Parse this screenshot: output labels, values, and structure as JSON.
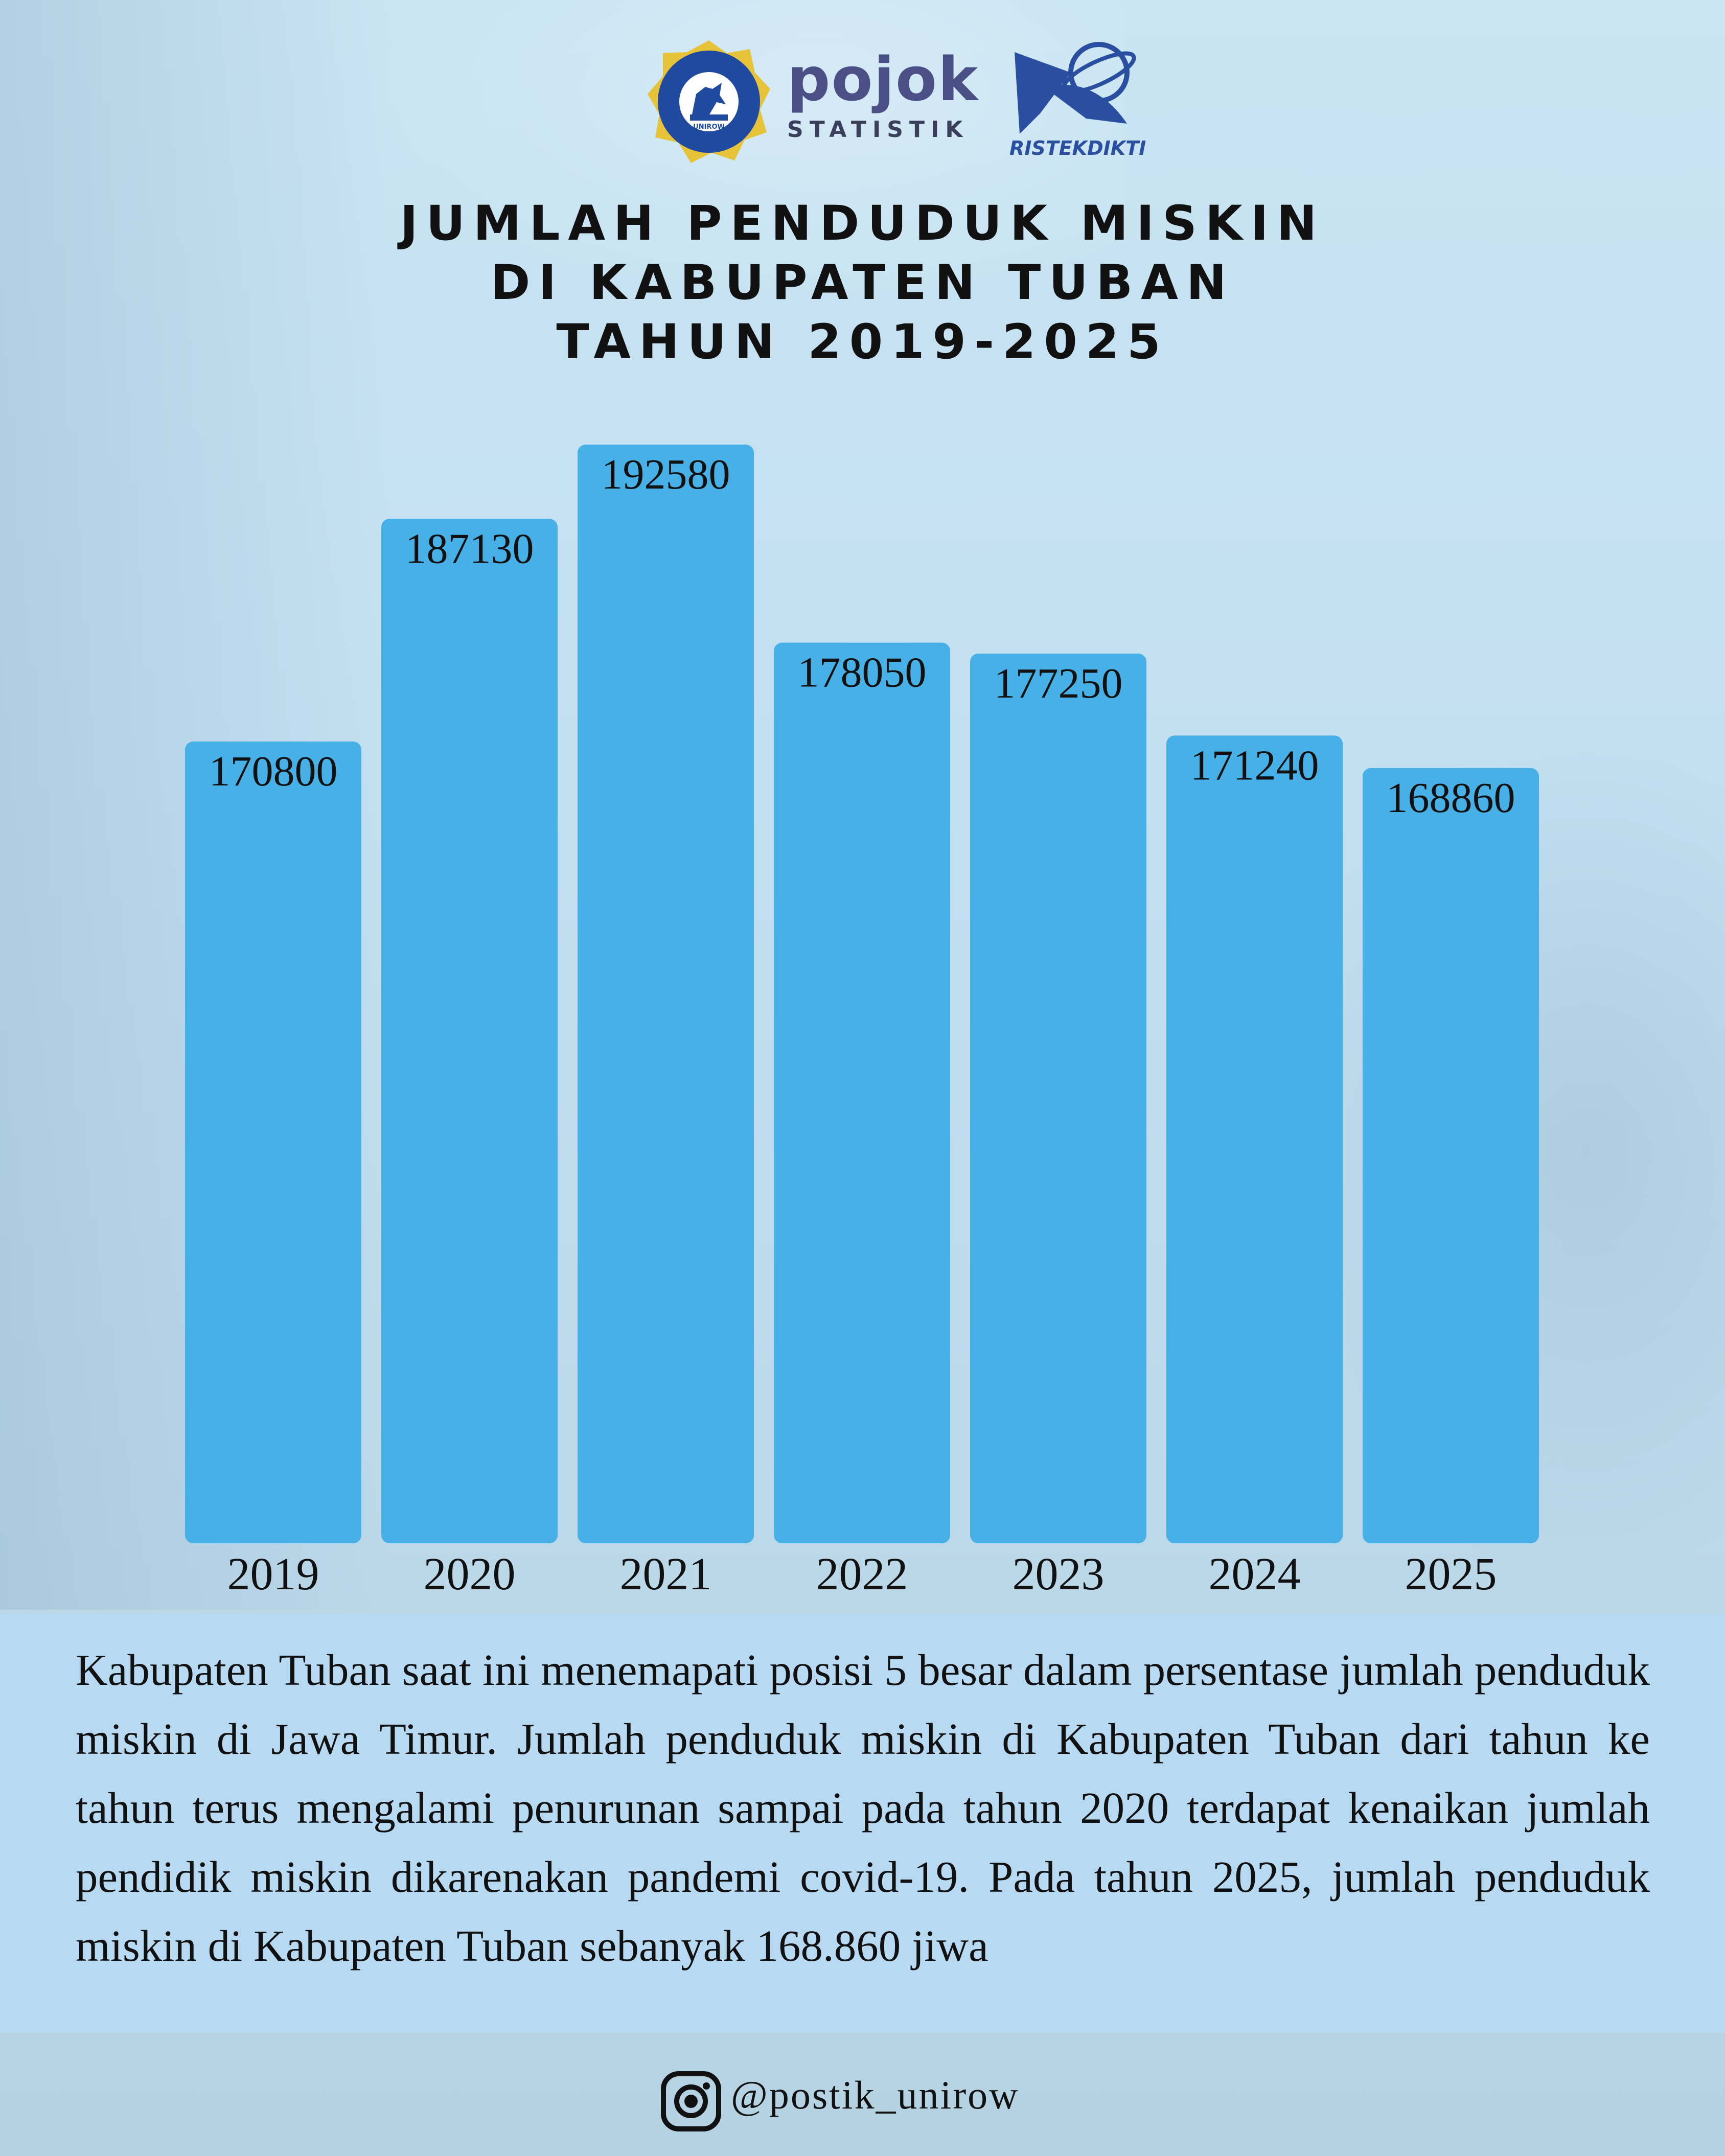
{
  "logos": {
    "unirow_text": "UNIVERSITAS PGRI RONGGOLAWE TUBAN",
    "unirow_inner": "UNIROW",
    "pojok_word": "pojok",
    "pojok_sub": "STATISTIK",
    "ristek_text": "RISTEKDIKTI"
  },
  "title": {
    "line1": "JUMLAH PENDUDUK MISKIN",
    "line2": "DI KABUPATEN TUBAN",
    "line3": "TAHUN 2019-2025"
  },
  "chart_data": {
    "type": "bar",
    "title": "JUMLAH PENDUDUK MISKIN DI KABUPATEN TUBAN TAHUN 2019-2025",
    "categories": [
      "2019",
      "2020",
      "2021",
      "2022",
      "2023",
      "2024",
      "2025"
    ],
    "values": [
      170800,
      187130,
      192580,
      178050,
      177250,
      171240,
      168860
    ],
    "data_labels": [
      "170800",
      "187130",
      "192580",
      "178050",
      "177250",
      "171240",
      "168860"
    ],
    "xlabel": "",
    "ylabel": "",
    "ylim": [
      0,
      200000
    ],
    "grid": false,
    "legend": "none",
    "bar_color": "#47b0e6"
  },
  "description": "Kabupaten Tuban saat ini menemapati posisi 5 besar dalam persentase jumlah penduduk miskin di Jawa Timur. Jumlah penduduk miskin di Kabupaten Tuban dari tahun ke tahun terus mengalami penurunan sampai pada tahun 2020 terdapat kenaikan jumlah pendidik miskin dikarenakan pandemi covid-19. Pada tahun 2025, jumlah penduduk miskin di Kabupaten Tuban sebanyak 168.860 jiwa",
  "footer": {
    "icon": "instagram-icon",
    "handle": "@postik_unirow"
  }
}
